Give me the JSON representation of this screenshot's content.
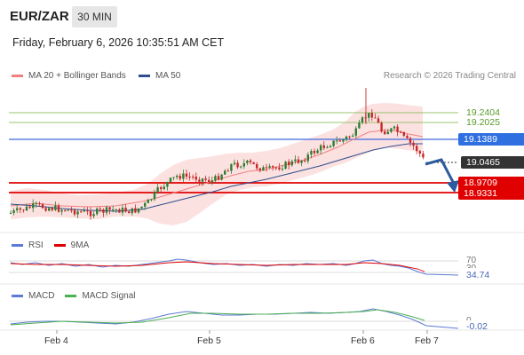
{
  "header": {
    "symbol": "EUR/ZAR",
    "interval": "30 MIN",
    "timestamp": "Friday, February 6, 2026 10:35:51 AM CET"
  },
  "legend": {
    "ma20_label": "MA 20 + Bollinger Bands",
    "ma20_color": "#f08080",
    "ma50_label": "MA 50",
    "ma50_color": "#2d4f8e",
    "copyright": "Research © 2026 Trading Central"
  },
  "price_levels": {
    "resistance_1": "19.2404",
    "resistance_2": "19.2025",
    "pivot": "19.1389",
    "last_price": "19.0465",
    "support_1": "18.9709",
    "support_2": "18.9331"
  },
  "colors": {
    "pivot_line": "#4169e1",
    "support_line": "#e00000",
    "resistance_line": "#7cb342",
    "last_price_bg": "#333333",
    "candle_up": "#2e7d32",
    "candle_down": "#c62828",
    "band_fill": "#fbdcdc",
    "arrow": "#2d5a9e"
  },
  "rsi": {
    "label": "RSI",
    "ma_label": "9MA",
    "level_70": "70",
    "level_30": "30",
    "value": "34.74",
    "rsi_color": "#5b7bd5",
    "ma_color": "#e00000"
  },
  "macd": {
    "label": "MACD",
    "signal_label": "MACD Signal",
    "zero": "0",
    "value": "-0.02",
    "macd_color": "#5b7bd5",
    "signal_color": "#4caf50"
  },
  "x_axis": {
    "labels": [
      "Feb 4",
      "Feb 5",
      "Feb 6",
      "Feb 7"
    ]
  }
}
